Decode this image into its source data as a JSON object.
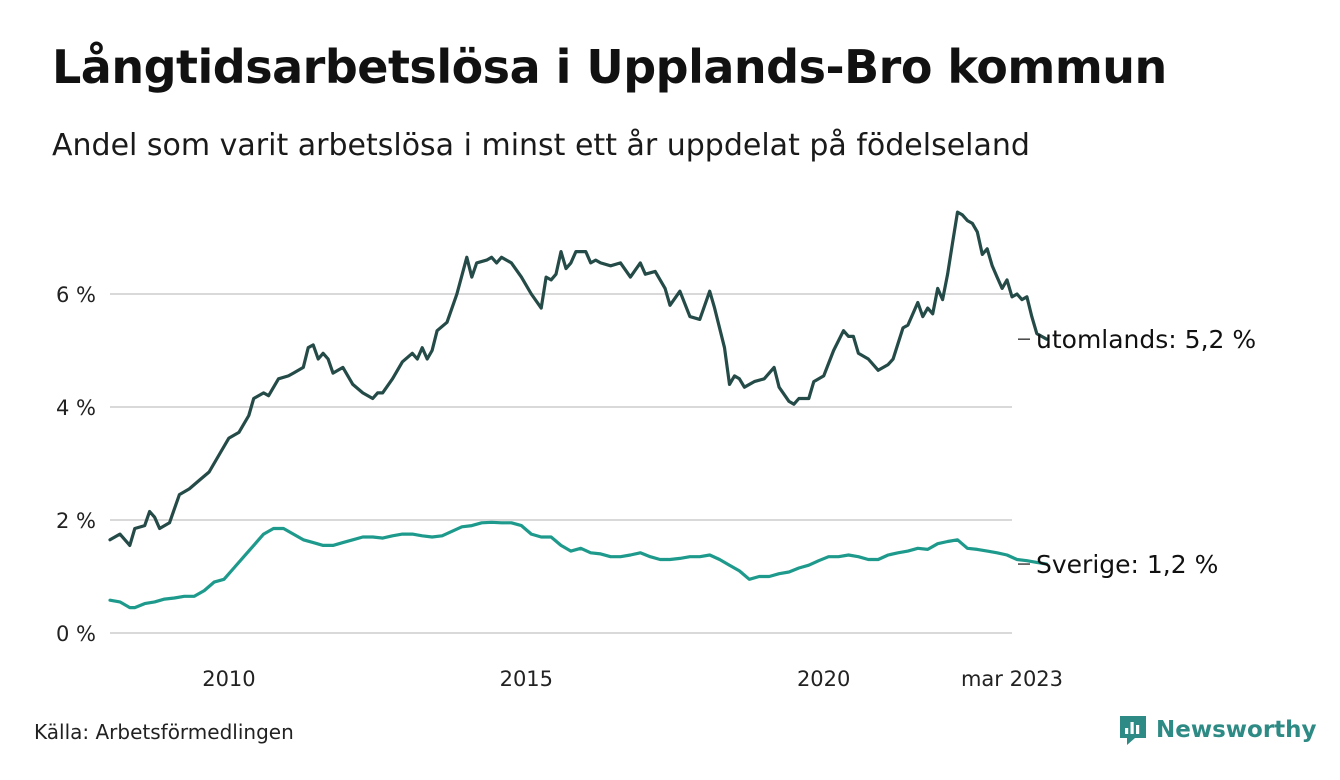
{
  "title": "Långtidsarbetslösa i Upplands-Bro kommun",
  "subtitle": "Andel som varit arbetslösa i minst ett år uppdelat på födelseland",
  "source": "Källa: Arbetsförmedlingen",
  "brand": {
    "name": "Newsworthy",
    "icon": "newsworthy-logo-icon",
    "color": "#2e8a84"
  },
  "chart_data": {
    "type": "line",
    "x_start": "2008-01",
    "x_end": "2023-03",
    "x_ticks": [
      {
        "x": "2010-01",
        "label": "2010"
      },
      {
        "x": "2015-01",
        "label": "2015"
      },
      {
        "x": "2020-01",
        "label": "2020"
      },
      {
        "x": "2023-03",
        "label": "mar 2023"
      }
    ],
    "y_ticks": [
      {
        "y": 0,
        "label": "0 %"
      },
      {
        "y": 2,
        "label": "2 %"
      },
      {
        "y": 4,
        "label": "4 %"
      },
      {
        "y": 6,
        "label": "6 %"
      }
    ],
    "ylim": [
      0,
      7.6
    ],
    "grid": true,
    "series": [
      {
        "key": "utomlands",
        "label": "utomlands: 5,2 %",
        "color": "#244b47",
        "points": [
          [
            "2008-01",
            1.65
          ],
          [
            "2008-03",
            1.75
          ],
          [
            "2008-05",
            1.55
          ],
          [
            "2008-06",
            1.85
          ],
          [
            "2008-08",
            1.9
          ],
          [
            "2008-09",
            2.15
          ],
          [
            "2008-10",
            2.05
          ],
          [
            "2008-11",
            1.85
          ],
          [
            "2009-01",
            1.95
          ],
          [
            "2009-03",
            2.45
          ],
          [
            "2009-05",
            2.55
          ],
          [
            "2009-07",
            2.7
          ],
          [
            "2009-09",
            2.85
          ],
          [
            "2009-11",
            3.15
          ],
          [
            "2010-01",
            3.45
          ],
          [
            "2010-03",
            3.55
          ],
          [
            "2010-05",
            3.85
          ],
          [
            "2010-06",
            4.15
          ],
          [
            "2010-08",
            4.25
          ],
          [
            "2010-09",
            4.2
          ],
          [
            "2010-11",
            4.5
          ],
          [
            "2011-01",
            4.55
          ],
          [
            "2011-02",
            4.6
          ],
          [
            "2011-04",
            4.7
          ],
          [
            "2011-05",
            5.05
          ],
          [
            "2011-06",
            5.1
          ],
          [
            "2011-07",
            4.85
          ],
          [
            "2011-08",
            4.95
          ],
          [
            "2011-09",
            4.85
          ],
          [
            "2011-10",
            4.6
          ],
          [
            "2011-12",
            4.7
          ],
          [
            "2012-02",
            4.4
          ],
          [
            "2012-04",
            4.25
          ],
          [
            "2012-06",
            4.15
          ],
          [
            "2012-07",
            4.25
          ],
          [
            "2012-08",
            4.25
          ],
          [
            "2012-10",
            4.5
          ],
          [
            "2012-12",
            4.8
          ],
          [
            "2013-02",
            4.95
          ],
          [
            "2013-03",
            4.85
          ],
          [
            "2013-04",
            5.05
          ],
          [
            "2013-05",
            4.85
          ],
          [
            "2013-06",
            5.0
          ],
          [
            "2013-07",
            5.35
          ],
          [
            "2013-09",
            5.5
          ],
          [
            "2013-11",
            6.0
          ],
          [
            "2014-01",
            6.65
          ],
          [
            "2014-02",
            6.3
          ],
          [
            "2014-03",
            6.55
          ],
          [
            "2014-05",
            6.6
          ],
          [
            "2014-06",
            6.65
          ],
          [
            "2014-07",
            6.55
          ],
          [
            "2014-08",
            6.65
          ],
          [
            "2014-10",
            6.55
          ],
          [
            "2014-12",
            6.3
          ],
          [
            "2015-02",
            6.0
          ],
          [
            "2015-04",
            5.75
          ],
          [
            "2015-05",
            6.3
          ],
          [
            "2015-06",
            6.25
          ],
          [
            "2015-07",
            6.35
          ],
          [
            "2015-08",
            6.75
          ],
          [
            "2015-09",
            6.45
          ],
          [
            "2015-10",
            6.55
          ],
          [
            "2015-11",
            6.75
          ],
          [
            "2016-01",
            6.75
          ],
          [
            "2016-02",
            6.55
          ],
          [
            "2016-03",
            6.6
          ],
          [
            "2016-04",
            6.55
          ],
          [
            "2016-06",
            6.5
          ],
          [
            "2016-08",
            6.55
          ],
          [
            "2016-10",
            6.3
          ],
          [
            "2016-12",
            6.55
          ],
          [
            "2017-01",
            6.35
          ],
          [
            "2017-03",
            6.4
          ],
          [
            "2017-05",
            6.1
          ],
          [
            "2017-06",
            5.8
          ],
          [
            "2017-08",
            6.05
          ],
          [
            "2017-10",
            5.6
          ],
          [
            "2017-12",
            5.55
          ],
          [
            "2018-02",
            6.05
          ],
          [
            "2018-03",
            5.75
          ],
          [
            "2018-05",
            5.05
          ],
          [
            "2018-06",
            4.4
          ],
          [
            "2018-07",
            4.55
          ],
          [
            "2018-08",
            4.5
          ],
          [
            "2018-09",
            4.35
          ],
          [
            "2018-11",
            4.45
          ],
          [
            "2019-01",
            4.5
          ],
          [
            "2019-03",
            4.7
          ],
          [
            "2019-04",
            4.35
          ],
          [
            "2019-06",
            4.1
          ],
          [
            "2019-07",
            4.05
          ],
          [
            "2019-08",
            4.15
          ],
          [
            "2019-10",
            4.15
          ],
          [
            "2019-11",
            4.45
          ],
          [
            "2020-01",
            4.55
          ],
          [
            "2020-03",
            5.0
          ],
          [
            "2020-05",
            5.35
          ],
          [
            "2020-06",
            5.25
          ],
          [
            "2020-07",
            5.25
          ],
          [
            "2020-08",
            4.95
          ],
          [
            "2020-10",
            4.85
          ],
          [
            "2020-12",
            4.65
          ],
          [
            "2021-02",
            4.75
          ],
          [
            "2021-03",
            4.85
          ],
          [
            "2021-05",
            5.4
          ],
          [
            "2021-06",
            5.45
          ],
          [
            "2021-08",
            5.85
          ],
          [
            "2021-09",
            5.6
          ],
          [
            "2021-10",
            5.75
          ],
          [
            "2021-11",
            5.65
          ],
          [
            "2021-12",
            6.1
          ],
          [
            "2022-01",
            5.9
          ],
          [
            "2022-02",
            6.35
          ],
          [
            "2022-03",
            6.9
          ],
          [
            "2022-04",
            7.45
          ],
          [
            "2022-05",
            7.4
          ],
          [
            "2022-06",
            7.3
          ],
          [
            "2022-07",
            7.25
          ],
          [
            "2022-08",
            7.1
          ],
          [
            "2022-09",
            6.7
          ],
          [
            "2022-10",
            6.8
          ],
          [
            "2022-11",
            6.5
          ],
          [
            "2022-12",
            6.3
          ],
          [
            "2023-01",
            6.1
          ],
          [
            "2023-02",
            6.25
          ],
          [
            "2023-03",
            5.95
          ],
          [
            "2023-04",
            6.0
          ],
          [
            "2023-05",
            5.9
          ],
          [
            "2023-06",
            5.95
          ],
          [
            "2023-07",
            5.6
          ],
          [
            "2023-08",
            5.3
          ],
          [
            "2023-09",
            5.25
          ],
          [
            "2023-10",
            5.2
          ]
        ]
      },
      {
        "key": "sverige",
        "label": "Sverige: 1,2 %",
        "color": "#1e9a8c",
        "points": [
          [
            "2008-01",
            0.58
          ],
          [
            "2008-03",
            0.55
          ],
          [
            "2008-05",
            0.45
          ],
          [
            "2008-06",
            0.45
          ],
          [
            "2008-08",
            0.52
          ],
          [
            "2008-10",
            0.55
          ],
          [
            "2008-12",
            0.6
          ],
          [
            "2009-02",
            0.62
          ],
          [
            "2009-04",
            0.65
          ],
          [
            "2009-06",
            0.65
          ],
          [
            "2009-08",
            0.75
          ],
          [
            "2009-10",
            0.9
          ],
          [
            "2009-12",
            0.95
          ],
          [
            "2010-02",
            1.15
          ],
          [
            "2010-04",
            1.35
          ],
          [
            "2010-06",
            1.55
          ],
          [
            "2010-08",
            1.75
          ],
          [
            "2010-10",
            1.85
          ],
          [
            "2010-12",
            1.85
          ],
          [
            "2011-02",
            1.75
          ],
          [
            "2011-04",
            1.65
          ],
          [
            "2011-06",
            1.6
          ],
          [
            "2011-08",
            1.55
          ],
          [
            "2011-10",
            1.55
          ],
          [
            "2011-12",
            1.6
          ],
          [
            "2012-02",
            1.65
          ],
          [
            "2012-04",
            1.7
          ],
          [
            "2012-06",
            1.7
          ],
          [
            "2012-08",
            1.68
          ],
          [
            "2012-10",
            1.72
          ],
          [
            "2012-12",
            1.75
          ],
          [
            "2013-02",
            1.75
          ],
          [
            "2013-04",
            1.72
          ],
          [
            "2013-06",
            1.7
          ],
          [
            "2013-08",
            1.72
          ],
          [
            "2013-10",
            1.8
          ],
          [
            "2013-12",
            1.88
          ],
          [
            "2014-02",
            1.9
          ],
          [
            "2014-04",
            1.95
          ],
          [
            "2014-06",
            1.96
          ],
          [
            "2014-08",
            1.95
          ],
          [
            "2014-10",
            1.95
          ],
          [
            "2014-12",
            1.9
          ],
          [
            "2015-02",
            1.75
          ],
          [
            "2015-04",
            1.7
          ],
          [
            "2015-06",
            1.7
          ],
          [
            "2015-08",
            1.55
          ],
          [
            "2015-10",
            1.45
          ],
          [
            "2015-12",
            1.5
          ],
          [
            "2016-02",
            1.42
          ],
          [
            "2016-04",
            1.4
          ],
          [
            "2016-06",
            1.35
          ],
          [
            "2016-08",
            1.35
          ],
          [
            "2016-10",
            1.38
          ],
          [
            "2016-12",
            1.42
          ],
          [
            "2017-02",
            1.35
          ],
          [
            "2017-04",
            1.3
          ],
          [
            "2017-06",
            1.3
          ],
          [
            "2017-08",
            1.32
          ],
          [
            "2017-10",
            1.35
          ],
          [
            "2017-12",
            1.35
          ],
          [
            "2018-02",
            1.38
          ],
          [
            "2018-04",
            1.3
          ],
          [
            "2018-06",
            1.2
          ],
          [
            "2018-08",
            1.1
          ],
          [
            "2018-10",
            0.95
          ],
          [
            "2018-12",
            1.0
          ],
          [
            "2019-02",
            1.0
          ],
          [
            "2019-04",
            1.05
          ],
          [
            "2019-06",
            1.08
          ],
          [
            "2019-08",
            1.15
          ],
          [
            "2019-10",
            1.2
          ],
          [
            "2019-12",
            1.28
          ],
          [
            "2020-02",
            1.35
          ],
          [
            "2020-04",
            1.35
          ],
          [
            "2020-06",
            1.38
          ],
          [
            "2020-08",
            1.35
          ],
          [
            "2020-10",
            1.3
          ],
          [
            "2020-12",
            1.3
          ],
          [
            "2021-02",
            1.38
          ],
          [
            "2021-04",
            1.42
          ],
          [
            "2021-06",
            1.45
          ],
          [
            "2021-08",
            1.5
          ],
          [
            "2021-10",
            1.48
          ],
          [
            "2021-12",
            1.58
          ],
          [
            "2022-02",
            1.62
          ],
          [
            "2022-04",
            1.65
          ],
          [
            "2022-06",
            1.5
          ],
          [
            "2022-08",
            1.48
          ],
          [
            "2022-10",
            1.45
          ],
          [
            "2022-12",
            1.42
          ],
          [
            "2023-02",
            1.38
          ],
          [
            "2023-04",
            1.3
          ],
          [
            "2023-06",
            1.28
          ],
          [
            "2023-08",
            1.25
          ],
          [
            "2023-10",
            1.22
          ]
        ]
      }
    ]
  }
}
